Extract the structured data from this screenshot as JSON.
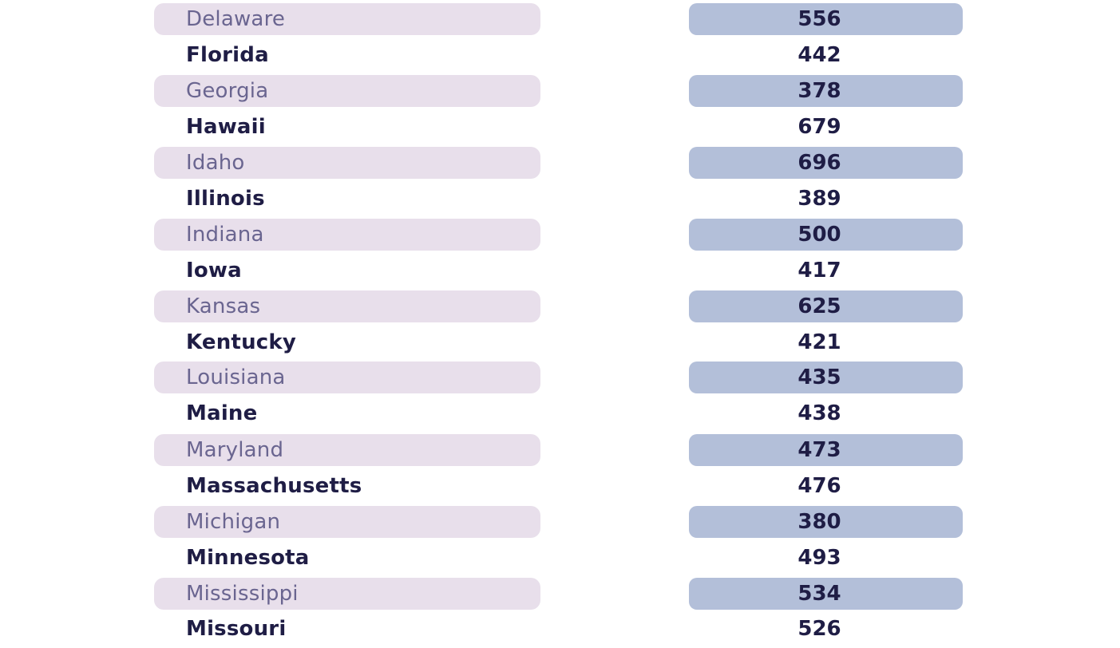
{
  "rows": [
    {
      "state": "Delaware",
      "value": "556"
    },
    {
      "state": "Florida",
      "value": "442"
    },
    {
      "state": "Georgia",
      "value": "378"
    },
    {
      "state": "Hawaii",
      "value": "679"
    },
    {
      "state": "Idaho",
      "value": "696"
    },
    {
      "state": "Illinois",
      "value": "389"
    },
    {
      "state": "Indiana",
      "value": "500"
    },
    {
      "state": "Iowa",
      "value": "417"
    },
    {
      "state": "Kansas",
      "value": "625"
    },
    {
      "state": "Kentucky",
      "value": "421"
    },
    {
      "state": "Louisiana",
      "value": "435"
    },
    {
      "state": "Maine",
      "value": "438"
    },
    {
      "state": "Maryland",
      "value": "473"
    },
    {
      "state": "Massachusetts",
      "value": "476"
    },
    {
      "state": "Michigan",
      "value": "380"
    },
    {
      "state": "Minnesota",
      "value": "493"
    },
    {
      "state": "Mississippi",
      "value": "534"
    },
    {
      "state": "Missouri",
      "value": "526"
    }
  ],
  "colors": {
    "name_band": "#e8dfeb",
    "value_band": "#b3bfd9",
    "text_dark": "#1f1d45",
    "text_muted": "#6a6590"
  }
}
